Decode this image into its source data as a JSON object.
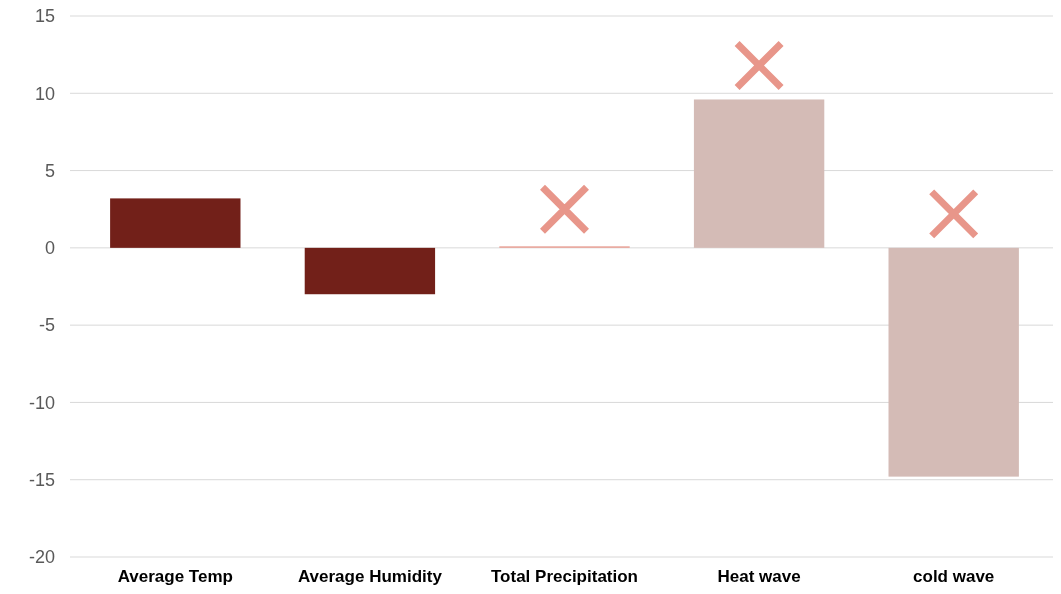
{
  "chart_data": {
    "type": "bar",
    "categories": [
      "Average Temp",
      "Average Humidity",
      "Total Precipitation",
      "Heat wave",
      "cold wave"
    ],
    "series": [
      {
        "values": [
          3.2,
          -3.0,
          0.1,
          9.6,
          -14.8
        ],
        "colors": [
          "#722019",
          "#722019",
          "#e8a298",
          "#d4bbb6",
          "#d4bbb6"
        ]
      },
      {
        "type": "scatter",
        "color": "#e8968a",
        "values": [
          null,
          null,
          2.5,
          11.8,
          2.2
        ]
      }
    ],
    "ylim": [
      -20,
      15
    ],
    "yticks": [
      -20,
      -15,
      -10,
      -5,
      0,
      5,
      10,
      15
    ],
    "grid": "y",
    "marker": "cross"
  }
}
